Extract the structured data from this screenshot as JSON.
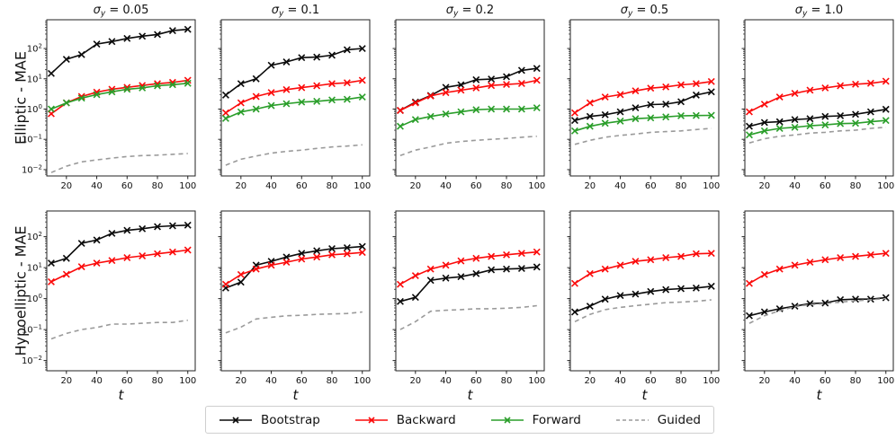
{
  "figure": {
    "row_labels": [
      "Elliptic - MAE",
      "Hypoelliptic - MAE"
    ],
    "xlabel": "t",
    "x_ticks": [
      20,
      40,
      60,
      80,
      100
    ],
    "y_tick_exponents": [
      2,
      1,
      0,
      -1,
      -2
    ],
    "column_titles": [
      {
        "base": "σ",
        "sub": "y",
        "rest": " = 0.05"
      },
      {
        "base": "σ",
        "sub": "y",
        "rest": " = 0.1"
      },
      {
        "base": "σ",
        "sub": "y",
        "rest": " = 0.2"
      },
      {
        "base": "σ",
        "sub": "y",
        "rest": " = 0.5"
      },
      {
        "base": "σ",
        "sub": "y",
        "rest": " = 1.0"
      }
    ]
  },
  "colors": {
    "bootstrap": "#0a0a0a",
    "backward": "#fb0a0a",
    "forward": "#2a9e2a",
    "guided": "#9a9a9a"
  },
  "legend": [
    {
      "label": "Bootstrap",
      "series": "bootstrap",
      "dashed": false,
      "marker": "x"
    },
    {
      "label": "Backward",
      "series": "backward",
      "dashed": false,
      "marker": "x"
    },
    {
      "label": "Forward",
      "series": "forward",
      "dashed": false,
      "marker": "x"
    },
    {
      "label": "Guided",
      "series": "guided",
      "dashed": true,
      "marker": "none"
    }
  ],
  "chart_data": [
    {
      "type": "line",
      "row": 0,
      "col": 0,
      "title": "σ_y = 0.05",
      "yscale": "log",
      "ylim": [
        0.006,
        900
      ],
      "x": [
        10,
        20,
        30,
        40,
        50,
        60,
        70,
        80,
        90,
        100
      ],
      "series": [
        {
          "name": "Bootstrap",
          "key": "bootstrap",
          "values": [
            15,
            44,
            63,
            140,
            170,
            215,
            255,
            290,
            390,
            430
          ]
        },
        {
          "name": "Backward",
          "key": "backward",
          "values": [
            0.7,
            1.6,
            2.6,
            3.6,
            4.5,
            5.2,
            6.0,
            6.9,
            7.6,
            8.9
          ]
        },
        {
          "name": "Forward",
          "key": "forward",
          "values": [
            1.0,
            1.6,
            2.3,
            3.0,
            3.7,
            4.5,
            5.0,
            5.9,
            6.4,
            7.1
          ]
        },
        {
          "name": "Guided",
          "key": "guided",
          "values": [
            0.008,
            0.013,
            0.018,
            0.021,
            0.024,
            0.027,
            0.029,
            0.03,
            0.032,
            0.034
          ]
        }
      ]
    },
    {
      "type": "line",
      "row": 0,
      "col": 1,
      "title": "σ_y = 0.1",
      "yscale": "log",
      "ylim": [
        0.006,
        900
      ],
      "x": [
        10,
        20,
        30,
        40,
        50,
        60,
        70,
        80,
        90,
        100
      ],
      "series": [
        {
          "name": "Bootstrap",
          "key": "bootstrap",
          "values": [
            2.9,
            6.9,
            10,
            28,
            36,
            50,
            52,
            60,
            91,
            100
          ]
        },
        {
          "name": "Backward",
          "key": "backward",
          "values": [
            0.75,
            1.6,
            2.6,
            3.5,
            4.4,
            5.1,
            5.9,
            6.9,
            7.4,
            8.9
          ]
        },
        {
          "name": "Forward",
          "key": "forward",
          "values": [
            0.49,
            0.8,
            1.0,
            1.3,
            1.5,
            1.7,
            1.8,
            2.0,
            2.1,
            2.5
          ]
        },
        {
          "name": "Guided",
          "key": "guided",
          "values": [
            0.014,
            0.022,
            0.028,
            0.035,
            0.04,
            0.044,
            0.05,
            0.056,
            0.06,
            0.066
          ]
        }
      ]
    },
    {
      "type": "line",
      "row": 0,
      "col": 2,
      "title": "σ_y = 0.2",
      "yscale": "log",
      "ylim": [
        0.006,
        900
      ],
      "x": [
        10,
        20,
        30,
        40,
        50,
        60,
        70,
        80,
        90,
        100
      ],
      "series": [
        {
          "name": "Bootstrap",
          "key": "bootstrap",
          "values": [
            0.9,
            1.7,
            2.8,
            5.2,
            6.3,
            9.3,
            9.8,
            11.7,
            19,
            22
          ]
        },
        {
          "name": "Backward",
          "key": "backward",
          "values": [
            0.9,
            1.6,
            2.7,
            3.5,
            4.2,
            5.0,
            6.0,
            6.5,
            7.0,
            8.9
          ]
        },
        {
          "name": "Forward",
          "key": "forward",
          "values": [
            0.27,
            0.45,
            0.57,
            0.69,
            0.81,
            0.95,
            1.0,
            1.0,
            1.0,
            1.1
          ]
        },
        {
          "name": "Guided",
          "key": "guided",
          "values": [
            0.029,
            0.044,
            0.056,
            0.074,
            0.085,
            0.093,
            0.1,
            0.107,
            0.117,
            0.126
          ]
        }
      ]
    },
    {
      "type": "line",
      "row": 0,
      "col": 3,
      "title": "σ_y = 0.5",
      "yscale": "log",
      "ylim": [
        0.006,
        900
      ],
      "x": [
        10,
        20,
        30,
        40,
        50,
        60,
        70,
        80,
        90,
        100
      ],
      "series": [
        {
          "name": "Bootstrap",
          "key": "bootstrap",
          "values": [
            0.42,
            0.57,
            0.65,
            0.81,
            1.1,
            1.4,
            1.45,
            1.75,
            2.9,
            3.7
          ]
        },
        {
          "name": "Backward",
          "key": "backward",
          "values": [
            0.75,
            1.6,
            2.5,
            3.0,
            4.0,
            4.9,
            5.4,
            6.3,
            6.9,
            8.1
          ]
        },
        {
          "name": "Forward",
          "key": "forward",
          "values": [
            0.19,
            0.27,
            0.34,
            0.4,
            0.48,
            0.51,
            0.55,
            0.6,
            0.61,
            0.62
          ]
        },
        {
          "name": "Guided",
          "key": "guided",
          "values": [
            0.068,
            0.093,
            0.117,
            0.135,
            0.15,
            0.17,
            0.18,
            0.19,
            0.21,
            0.23
          ]
        }
      ]
    },
    {
      "type": "line",
      "row": 0,
      "col": 4,
      "title": "σ_y = 1.0",
      "yscale": "log",
      "ylim": [
        0.006,
        900
      ],
      "x": [
        10,
        20,
        30,
        40,
        50,
        60,
        70,
        80,
        90,
        100
      ],
      "series": [
        {
          "name": "Bootstrap",
          "key": "bootstrap",
          "values": [
            0.27,
            0.36,
            0.38,
            0.45,
            0.48,
            0.57,
            0.6,
            0.67,
            0.81,
            0.98
          ]
        },
        {
          "name": "Backward",
          "key": "backward",
          "values": [
            0.81,
            1.45,
            2.5,
            3.3,
            4.2,
            5.0,
            5.9,
            6.6,
            7.1,
            8.3
          ]
        },
        {
          "name": "Forward",
          "key": "forward",
          "values": [
            0.14,
            0.19,
            0.23,
            0.25,
            0.28,
            0.3,
            0.33,
            0.34,
            0.38,
            0.42
          ]
        },
        {
          "name": "Guided",
          "key": "guided",
          "values": [
            0.076,
            0.105,
            0.126,
            0.14,
            0.16,
            0.17,
            0.19,
            0.2,
            0.23,
            0.25
          ]
        }
      ]
    },
    {
      "type": "line",
      "row": 1,
      "col": 0,
      "title": "σ_y = 0.05",
      "yscale": "log",
      "ylim": [
        0.005,
        680
      ],
      "x": [
        10,
        20,
        30,
        40,
        50,
        60,
        70,
        80,
        90,
        100
      ],
      "series": [
        {
          "name": "Bootstrap",
          "key": "bootstrap",
          "values": [
            14,
            20,
            61,
            78,
            128,
            160,
            180,
            210,
            225,
            235
          ]
        },
        {
          "name": "Backward",
          "key": "backward",
          "values": [
            3.5,
            6.1,
            10.7,
            14,
            17,
            21,
            24,
            28,
            32,
            37
          ]
        },
        {
          "name": "Guided",
          "key": "guided",
          "values": [
            0.05,
            0.075,
            0.1,
            0.117,
            0.15,
            0.15,
            0.16,
            0.17,
            0.17,
            0.2
          ]
        }
      ]
    },
    {
      "type": "line",
      "row": 1,
      "col": 1,
      "title": "σ_y = 0.1",
      "yscale": "log",
      "ylim": [
        0.005,
        680
      ],
      "x": [
        10,
        20,
        30,
        40,
        50,
        60,
        70,
        80,
        90,
        100
      ],
      "series": [
        {
          "name": "Bootstrap",
          "key": "bootstrap",
          "values": [
            2.2,
            3.4,
            12,
            16,
            22,
            29,
            35,
            41,
            44,
            48
          ]
        },
        {
          "name": "Backward",
          "key": "backward",
          "values": [
            2.9,
            6.0,
            9.0,
            12,
            15,
            19,
            22,
            26,
            28,
            31
          ]
        },
        {
          "name": "Guided",
          "key": "guided",
          "values": [
            0.078,
            0.12,
            0.22,
            0.25,
            0.28,
            0.29,
            0.31,
            0.32,
            0.33,
            0.37
          ]
        }
      ]
    },
    {
      "type": "line",
      "row": 1,
      "col": 2,
      "title": "σ_y = 0.2",
      "yscale": "log",
      "ylim": [
        0.005,
        680
      ],
      "x": [
        10,
        20,
        30,
        40,
        50,
        60,
        70,
        80,
        90,
        100
      ],
      "series": [
        {
          "name": "Bootstrap",
          "key": "bootstrap",
          "values": [
            0.81,
            1.1,
            3.9,
            4.6,
            5.1,
            6.4,
            8.5,
            9.0,
            9.4,
            10.5
          ]
        },
        {
          "name": "Backward",
          "key": "backward",
          "values": [
            2.9,
            5.5,
            9.0,
            12,
            16.5,
            20,
            23,
            26,
            29,
            32
          ]
        },
        {
          "name": "Guided",
          "key": "guided",
          "values": [
            0.1,
            0.18,
            0.39,
            0.42,
            0.44,
            0.47,
            0.47,
            0.49,
            0.52,
            0.59
          ]
        }
      ]
    },
    {
      "type": "line",
      "row": 1,
      "col": 3,
      "title": "σ_y = 0.5",
      "yscale": "log",
      "ylim": [
        0.005,
        680
      ],
      "x": [
        10,
        20,
        30,
        40,
        50,
        60,
        70,
        80,
        90,
        100
      ],
      "series": [
        {
          "name": "Bootstrap",
          "key": "bootstrap",
          "values": [
            0.37,
            0.57,
            0.96,
            1.26,
            1.4,
            1.7,
            1.95,
            2.1,
            2.2,
            2.5
          ]
        },
        {
          "name": "Backward",
          "key": "backward",
          "values": [
            3.1,
            6.4,
            9.0,
            12,
            16,
            18,
            21,
            23,
            28,
            29
          ]
        },
        {
          "name": "Guided",
          "key": "guided",
          "values": [
            0.18,
            0.31,
            0.44,
            0.52,
            0.59,
            0.66,
            0.74,
            0.77,
            0.82,
            0.91
          ]
        }
      ]
    },
    {
      "type": "line",
      "row": 1,
      "col": 4,
      "title": "σ_y = 1.0",
      "yscale": "log",
      "ylim": [
        0.005,
        680
      ],
      "x": [
        10,
        20,
        30,
        40,
        50,
        60,
        70,
        80,
        90,
        100
      ],
      "series": [
        {
          "name": "Bootstrap",
          "key": "bootstrap",
          "values": [
            0.28,
            0.37,
            0.47,
            0.57,
            0.69,
            0.72,
            0.92,
            0.96,
            0.96,
            1.07
          ]
        },
        {
          "name": "Backward",
          "key": "backward",
          "values": [
            3.1,
            6.0,
            9.0,
            12,
            15,
            18,
            21,
            23,
            26,
            29
          ]
        },
        {
          "name": "Guided",
          "key": "guided",
          "values": [
            0.16,
            0.28,
            0.41,
            0.55,
            0.64,
            0.69,
            0.77,
            0.85,
            0.92,
            1.0
          ]
        }
      ]
    }
  ]
}
